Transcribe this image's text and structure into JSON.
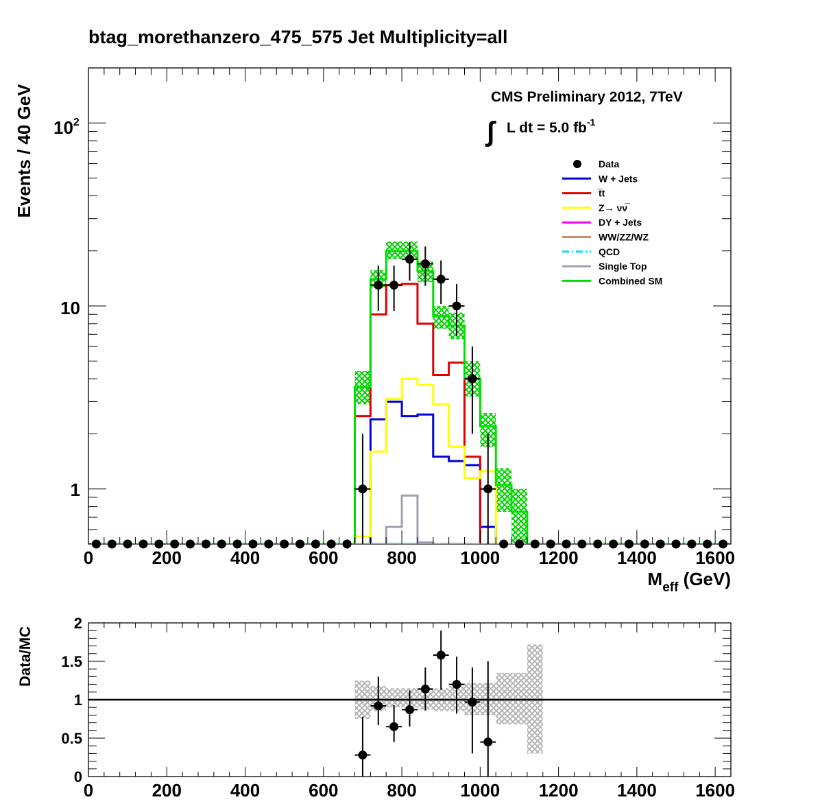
{
  "chart_data": [
    {
      "type": "line",
      "title": "btag_morethanzero_475_575    Jet Multiplicity=all",
      "xlabel": "M",
      "xlabel_sub": "eff",
      "xlabel_unit": "(GeV)",
      "ylabel": "Events / 40 GeV",
      "log_y": true,
      "xlim": [
        0,
        1640
      ],
      "ylim": [
        0.5,
        200
      ],
      "x_ticks": [
        "0",
        "200",
        "400",
        "600",
        "800",
        "1000",
        "1200",
        "1400",
        "1600"
      ],
      "y_ticks": [
        "1",
        "10",
        "10"
      ],
      "y_tick_sup": "2",
      "annotation_line1": "CMS Preliminary 2012, 7TeV",
      "annotation_line2_integral": "∫",
      "annotation_line2": "L dt = 5.0 fb",
      "annotation_line2_sup": "-1",
      "legend_position": "top-right",
      "bin_width": 40,
      "bin_edges": [
        680,
        720,
        760,
        800,
        840,
        880,
        920,
        960,
        1000,
        1040,
        1080,
        1120
      ],
      "series": [
        {
          "name": "W + Jets",
          "color": "#0000e0",
          "values": [
            0.5,
            2.4,
            3.0,
            2.5,
            2.55,
            1.5,
            1.42,
            1.35,
            0.62,
            0.5,
            0.5
          ]
        },
        {
          "name": "t̅t",
          "color": "#e00000",
          "values": [
            2.5,
            9.0,
            13.0,
            13.2,
            8.0,
            4.2,
            4.9,
            1.5,
            0.5,
            0.5,
            0.5
          ]
        },
        {
          "name": "Z→ νν̅",
          "color": "#ffff00",
          "values": [
            0.55,
            1.6,
            3.1,
            4.0,
            3.7,
            2.9,
            1.7,
            1.15,
            1.25,
            0.5,
            0.5
          ]
        },
        {
          "name": "DY + Jets",
          "color": "#ff00ff",
          "values": [
            0.5,
            0.5,
            0.5,
            0.5,
            0.5,
            0.5,
            0.5,
            0.5,
            0.5,
            0.5,
            0.5
          ]
        },
        {
          "name": "WW/ZZ/WZ",
          "color": "#c89070",
          "values": [
            0.5,
            0.5,
            0.5,
            0.5,
            0.5,
            0.5,
            0.5,
            0.5,
            0.5,
            0.5,
            0.5
          ]
        },
        {
          "name": "QCD",
          "color": "#00e0ff",
          "values": [
            0.5,
            0.5,
            0.5,
            0.5,
            0.5,
            0.5,
            0.5,
            0.5,
            0.5,
            0.5,
            0.5
          ]
        },
        {
          "name": "Single Top",
          "color": "#a0a0b4",
          "values": [
            0.5,
            0.5,
            0.62,
            0.92,
            0.51,
            0.5,
            0.5,
            0.5,
            0.5,
            0.5,
            0.5
          ]
        },
        {
          "name": "Combined SM",
          "color": "#00e000",
          "values": [
            3.6,
            14.0,
            20.0,
            20.0,
            15.5,
            8.8,
            7.8,
            4.0,
            2.2,
            1.05,
            0.75
          ]
        }
      ],
      "mc_uncertainty_band": {
        "low": [
          2.9,
          12.5,
          18.0,
          18.0,
          13.5,
          7.5,
          6.6,
          3.2,
          1.7,
          0.75,
          0.5
        ],
        "high": [
          4.4,
          15.7,
          22.5,
          22.5,
          17.5,
          10.0,
          9.2,
          5.0,
          2.6,
          1.3,
          1.0
        ]
      },
      "data_points": {
        "name": "Data",
        "x": [
          20,
          60,
          100,
          140,
          180,
          220,
          260,
          300,
          340,
          380,
          420,
          460,
          500,
          540,
          580,
          620,
          660,
          700,
          740,
          780,
          820,
          860,
          900,
          940,
          980,
          1020,
          1060,
          1100,
          1140,
          1180,
          1220,
          1260,
          1300,
          1340,
          1380,
          1420,
          1460,
          1500,
          1540,
          1580,
          1620
        ],
        "y": [
          0,
          0,
          0,
          0,
          0,
          0,
          0,
          0,
          0,
          0,
          0,
          0,
          0,
          0,
          0,
          0,
          0,
          1,
          13,
          13,
          18,
          17,
          14,
          10,
          4,
          1,
          0,
          0,
          0,
          0,
          0,
          0,
          0,
          0,
          0,
          0,
          0,
          0,
          0,
          0,
          0
        ]
      }
    },
    {
      "type": "scatter",
      "ylabel": "Data/MC",
      "xlim": [
        0,
        1640
      ],
      "ylim": [
        0,
        2
      ],
      "x_ticks": [
        "0",
        "200",
        "400",
        "600",
        "800",
        "1000",
        "1200",
        "1400",
        "1600"
      ],
      "y_ticks": [
        "0",
        "0.5",
        "1",
        "1.5",
        "2"
      ],
      "reference_line": 1,
      "band": {
        "bin_edges": [
          680,
          720,
          760,
          800,
          840,
          880,
          920,
          960,
          1000,
          1040,
          1080,
          1120,
          1160
        ],
        "low": [
          0.75,
          0.85,
          0.9,
          0.9,
          0.87,
          0.85,
          0.85,
          0.8,
          0.8,
          0.68,
          0.68,
          0.3
        ],
        "high": [
          1.25,
          1.18,
          1.15,
          1.15,
          1.15,
          1.15,
          1.18,
          1.22,
          1.22,
          1.35,
          1.35,
          1.72
        ]
      },
      "points": {
        "x": [
          700,
          740,
          780,
          820,
          860,
          900,
          940,
          980,
          1020
        ],
        "y": [
          0.28,
          0.92,
          0.65,
          0.87,
          1.14,
          1.58,
          1.2,
          0.97,
          0.45
        ],
        "err_low": [
          0.28,
          0.25,
          0.2,
          0.22,
          0.28,
          0.45,
          0.38,
          0.67,
          0.45
        ],
        "err_high": [
          0.5,
          0.38,
          0.28,
          0.25,
          0.28,
          0.32,
          0.36,
          0.45,
          1.05
        ]
      }
    }
  ]
}
